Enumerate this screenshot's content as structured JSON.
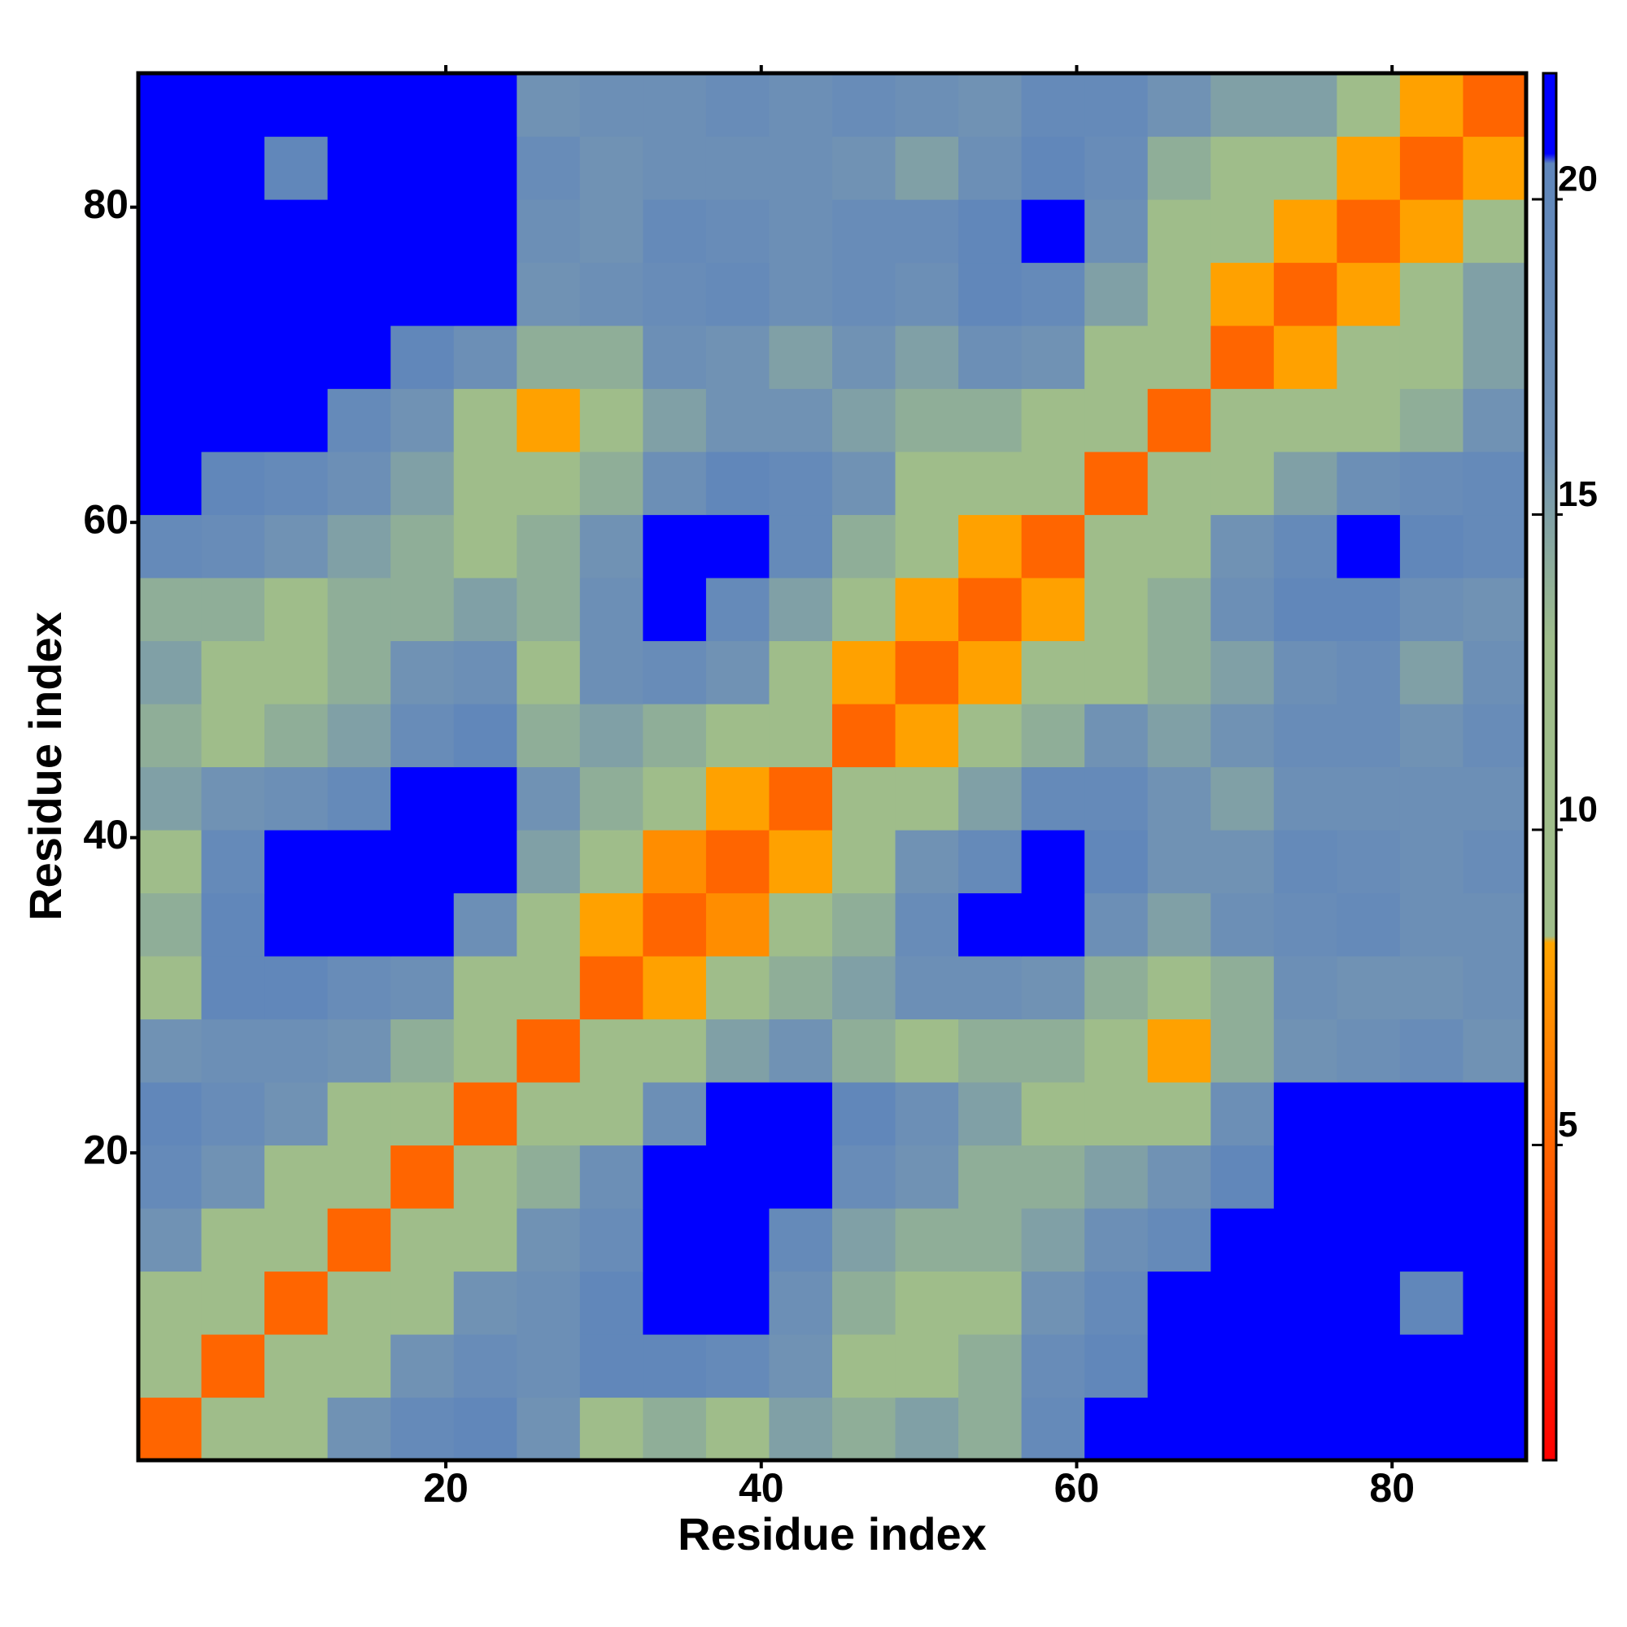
{
  "chart_data": {
    "type": "heatmap",
    "xlabel": "Residue index",
    "ylabel": "Residue index",
    "xbins": [
      0.5,
      4.5,
      8.5,
      12.5,
      16.5,
      20.5,
      24.5,
      28.5,
      32.5,
      36.5,
      40.5,
      44.5,
      48.5,
      52.5,
      56.5,
      60.5,
      64.5,
      68.5,
      72.5,
      76.5,
      80.5,
      84.5,
      88.5
    ],
    "ybins": [
      0.5,
      4.5,
      8.5,
      12.5,
      16.5,
      20.5,
      24.5,
      28.5,
      32.5,
      36.5,
      40.5,
      44.5,
      48.5,
      52.5,
      56.5,
      60.5,
      64.5,
      68.5,
      72.5,
      76.5,
      80.5,
      84.5,
      88.5
    ],
    "xlim": [
      0.5,
      88.5
    ],
    "ylim": [
      0.5,
      88.5
    ],
    "xticks": [
      20,
      40,
      60,
      80
    ],
    "yticks": [
      20,
      40,
      60,
      80
    ],
    "clim": [
      0,
      22
    ],
    "cticks": [
      5,
      10,
      15,
      20
    ],
    "colorscale": [
      [
        0,
        "#ff0000"
      ],
      [
        0.373,
        "#ffa500"
      ],
      [
        0.378,
        "#9fbd8a"
      ],
      [
        0.59,
        "#9fbd8a"
      ],
      [
        0.73,
        "#6f91b5"
      ],
      [
        0.935,
        "#5f86bb"
      ],
      [
        0.942,
        "#0000ff"
      ],
      [
        1,
        "#0000ff"
      ]
    ],
    "z": [
      [
        5,
        9,
        13,
        16,
        19,
        20,
        16,
        13,
        14,
        10,
        15,
        14,
        15,
        14,
        19,
        21,
        22,
        22,
        22,
        22,
        22,
        22
      ],
      [
        9,
        5,
        9,
        13,
        16,
        18,
        17,
        20,
        20,
        19,
        16,
        13,
        13,
        14,
        18,
        20,
        21,
        22,
        22,
        21,
        22,
        22
      ],
      [
        13,
        9,
        5,
        9,
        13,
        16,
        17,
        20,
        22,
        22,
        17,
        14,
        13,
        13,
        16,
        19,
        21,
        22,
        22,
        21,
        20,
        22
      ],
      [
        16,
        13,
        9,
        5,
        9,
        13,
        16,
        18,
        22,
        22,
        19,
        15,
        14,
        14,
        15,
        17,
        19,
        22,
        22,
        22,
        21,
        22
      ],
      [
        19,
        16,
        13,
        9,
        5,
        9,
        14,
        17,
        22,
        22,
        21,
        18,
        16,
        14,
        14,
        15,
        16,
        20,
        22,
        22,
        22,
        22
      ],
      [
        20,
        18,
        16,
        13,
        9,
        5,
        9,
        13,
        17,
        21,
        22,
        20,
        17,
        15,
        13,
        9,
        12,
        17,
        21,
        22,
        22,
        22
      ],
      [
        16,
        17,
        17,
        16,
        14,
        9,
        5,
        9,
        13,
        15,
        16,
        14,
        13,
        14,
        14,
        13,
        8,
        14,
        16,
        17,
        18,
        16
      ],
      [
        13,
        20,
        20,
        18,
        17,
        13,
        9,
        5,
        8,
        12,
        14,
        15,
        17,
        17,
        16,
        14,
        13,
        14,
        17,
        16,
        16,
        17
      ],
      [
        14,
        20,
        22,
        22,
        22,
        17,
        13,
        8,
        5,
        7,
        11,
        14,
        18,
        21,
        21,
        17,
        15,
        17,
        18,
        19,
        17,
        17
      ],
      [
        10,
        19,
        22,
        22,
        22,
        21,
        15,
        12,
        7,
        5,
        8,
        12,
        16,
        19,
        22,
        20,
        16,
        16,
        19,
        18,
        17,
        18
      ],
      [
        15,
        16,
        17,
        19,
        21,
        22,
        16,
        14,
        11,
        8,
        5,
        9,
        12,
        15,
        19,
        19,
        16,
        15,
        17,
        17,
        17,
        17
      ],
      [
        14,
        13,
        14,
        15,
        18,
        20,
        14,
        15,
        14,
        12,
        9,
        5,
        8,
        11,
        14,
        16,
        15,
        16,
        18,
        18,
        16,
        18
      ],
      [
        15,
        13,
        13,
        14,
        16,
        17,
        13,
        17,
        18,
        16,
        12,
        8,
        5,
        8,
        11,
        13,
        14,
        15,
        17,
        18,
        15,
        17
      ],
      [
        14,
        14,
        13,
        14,
        14,
        15,
        14,
        17,
        21,
        19,
        15,
        11,
        8,
        5,
        8,
        12,
        14,
        17,
        20,
        20,
        17,
        16
      ],
      [
        19,
        18,
        16,
        15,
        14,
        13,
        14,
        16,
        21,
        22,
        19,
        14,
        11,
        8,
        5,
        9,
        13,
        16,
        19,
        21,
        20,
        19
      ],
      [
        21,
        20,
        19,
        17,
        15,
        9,
        13,
        14,
        17,
        20,
        19,
        16,
        13,
        12,
        9,
        5,
        9,
        12,
        15,
        17,
        18,
        19
      ],
      [
        22,
        21,
        21,
        19,
        16,
        12,
        8,
        13,
        15,
        16,
        16,
        15,
        14,
        14,
        13,
        9,
        5,
        9,
        12,
        10,
        14,
        16
      ],
      [
        22,
        22,
        22,
        22,
        20,
        17,
        14,
        14,
        17,
        16,
        15,
        16,
        15,
        17,
        16,
        12,
        9,
        5,
        8,
        10,
        12,
        15
      ],
      [
        22,
        22,
        22,
        22,
        22,
        21,
        16,
        17,
        18,
        19,
        17,
        18,
        17,
        20,
        19,
        15,
        12,
        8,
        5,
        8,
        12,
        15
      ],
      [
        22,
        21,
        21,
        22,
        22,
        22,
        17,
        16,
        19,
        18,
        17,
        18,
        18,
        20,
        21,
        17,
        10,
        10,
        8,
        5,
        8,
        12
      ],
      [
        22,
        22,
        20,
        21,
        22,
        22,
        18,
        16,
        17,
        17,
        17,
        16,
        15,
        17,
        20,
        18,
        14,
        12,
        12,
        8,
        5,
        8
      ],
      [
        22,
        22,
        22,
        22,
        22,
        22,
        16,
        17,
        17,
        18,
        17,
        18,
        17,
        16,
        19,
        19,
        16,
        15,
        15,
        12,
        8,
        5
      ]
    ]
  }
}
